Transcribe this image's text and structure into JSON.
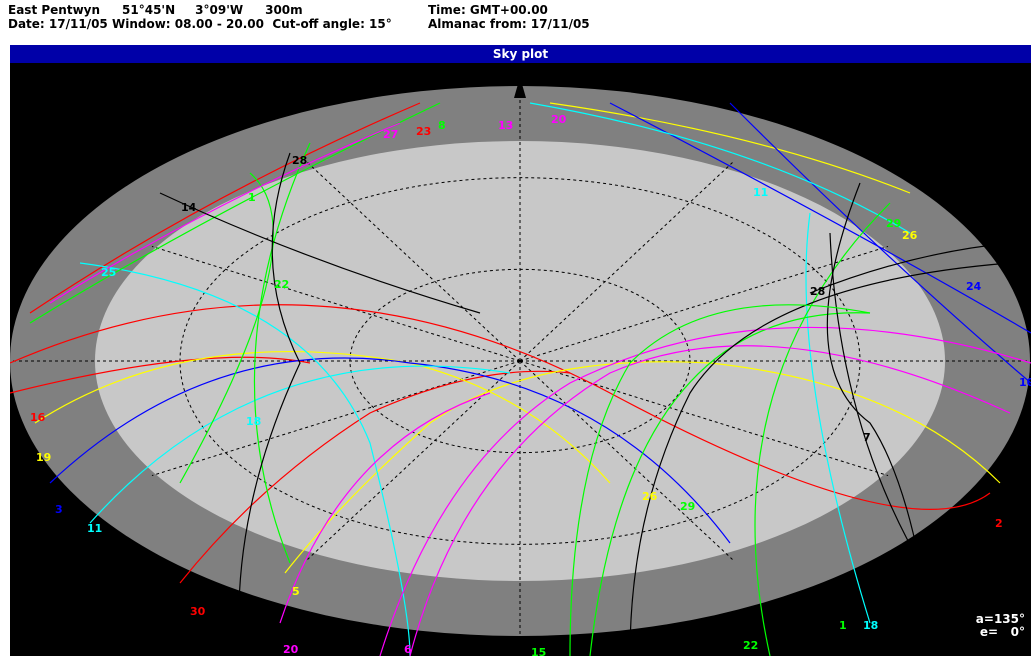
{
  "header": {
    "location": "East Pentwyn",
    "latitude": "51°45'N",
    "longitude": "3°09'W",
    "height": "300m",
    "time": "Time: GMT+00.00",
    "date": "Date: 17/11/05",
    "window": "Window: 08.00 - 20.00",
    "cutoff": "Cut-off angle: 15°",
    "almanac": "Almanac from: 17/11/05"
  },
  "plot_title": "Sky plot",
  "readout": {
    "azimuth": "a=135°",
    "elevation": "e=   0°"
  },
  "colors": {
    "title_bar": "#0000a8",
    "background": "#000000",
    "outer_band": "#808080",
    "inner_disk": "#c8c8c8"
  },
  "chart_data": {
    "type": "scatter",
    "subtype": "polar sky plot (azimuth/elevation)",
    "cutoff_elevation_deg": 15,
    "elevation_rings_deg": [
      30,
      60
    ],
    "azimuth_spokes_deg": [
      0,
      30,
      60,
      90,
      120,
      150,
      180,
      210,
      240,
      270,
      300,
      330
    ],
    "north_marker": "top",
    "satellites": [
      {
        "prn": "1",
        "color": "#00ff00"
      },
      {
        "prn": "2",
        "color": "#ff0000"
      },
      {
        "prn": "3",
        "color": "#0000ff"
      },
      {
        "prn": "5",
        "color": "#ffff00"
      },
      {
        "prn": "6",
        "color": "#ff00ff"
      },
      {
        "prn": "7",
        "color": "#000000"
      },
      {
        "prn": "8",
        "color": "#00ff00"
      },
      {
        "prn": "10",
        "color": "#0000ff"
      },
      {
        "prn": "11",
        "color": "#00ffff"
      },
      {
        "prn": "13",
        "color": "#ff00ff"
      },
      {
        "prn": "14",
        "color": "#000000"
      },
      {
        "prn": "15",
        "color": "#00ff00"
      },
      {
        "prn": "16",
        "color": "#ff0000"
      },
      {
        "prn": "18",
        "color": "#00ffff"
      },
      {
        "prn": "19",
        "color": "#ffff00"
      },
      {
        "prn": "20",
        "color": "#ff00ff"
      },
      {
        "prn": "21",
        "color": "#000000"
      },
      {
        "prn": "22",
        "color": "#00ff00"
      },
      {
        "prn": "23",
        "color": "#ff0000"
      },
      {
        "prn": "24",
        "color": "#0000ff"
      },
      {
        "prn": "25",
        "color": "#00ffff"
      },
      {
        "prn": "26",
        "color": "#ffff00"
      },
      {
        "prn": "27",
        "color": "#ff00ff"
      },
      {
        "prn": "28",
        "color": "#000000"
      },
      {
        "prn": "29",
        "color": "#00ff00"
      },
      {
        "prn": "30",
        "color": "#ff0000"
      }
    ],
    "labels": [
      {
        "text": "27",
        "color": "#ff00ff"
      },
      {
        "text": "23",
        "color": "#ff0000"
      },
      {
        "text": "8",
        "color": "#00ff00"
      },
      {
        "text": "13",
        "color": "#ff00ff"
      },
      {
        "text": "20",
        "color": "#ff00ff"
      },
      {
        "text": "28",
        "color": "#000000"
      },
      {
        "text": "1",
        "color": "#00ff00"
      },
      {
        "text": "14",
        "color": "#000000"
      },
      {
        "text": "25",
        "color": "#00ffff"
      },
      {
        "text": "22",
        "color": "#00ff00"
      },
      {
        "text": "11",
        "color": "#00ffff"
      },
      {
        "text": "29",
        "color": "#00ff00"
      },
      {
        "text": "26",
        "color": "#ffff00"
      },
      {
        "text": "24",
        "color": "#0000ff"
      },
      {
        "text": "28",
        "color": "#000000"
      },
      {
        "text": "10",
        "color": "#0000ff"
      },
      {
        "text": "16",
        "color": "#ff0000"
      },
      {
        "text": "19",
        "color": "#ffff00"
      },
      {
        "text": "18",
        "color": "#00ffff"
      },
      {
        "text": "3",
        "color": "#0000ff"
      },
      {
        "text": "11",
        "color": "#00ffff"
      },
      {
        "text": "7",
        "color": "#000000"
      },
      {
        "text": "26",
        "color": "#ffff00"
      },
      {
        "text": "29",
        "color": "#00ff00"
      },
      {
        "text": "2",
        "color": "#ff0000"
      },
      {
        "text": "14",
        "color": "#000000"
      },
      {
        "text": "5",
        "color": "#ffff00"
      },
      {
        "text": "30",
        "color": "#ff0000"
      },
      {
        "text": "20",
        "color": "#ff00ff"
      },
      {
        "text": "1",
        "color": "#00ff00"
      },
      {
        "text": "18",
        "color": "#00ffff"
      },
      {
        "text": "6",
        "color": "#ff00ff"
      },
      {
        "text": "15",
        "color": "#00ff00"
      },
      {
        "text": "21",
        "color": "#000000"
      },
      {
        "text": "22",
        "color": "#00ff00"
      }
    ]
  }
}
